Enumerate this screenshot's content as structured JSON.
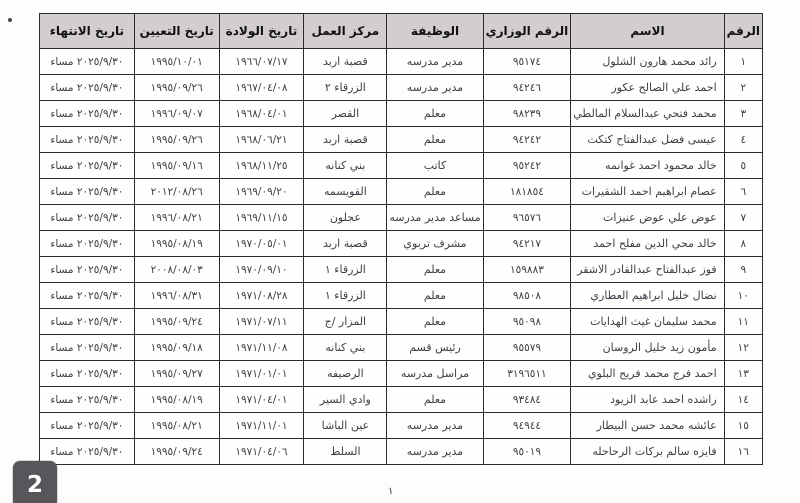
{
  "page": {
    "badge": "2",
    "footnote": "١"
  },
  "colors": {
    "header_bg": "#d2cece",
    "badge_bg": "#57575b",
    "border": "#2b2b2b",
    "ink": "#3e3e48"
  },
  "table": {
    "headers": [
      "الرقم",
      "الاسم",
      "الرقم الوزاري",
      "الوظيفة",
      "مركز العمل",
      "تاريخ الولادة",
      "تاريخ التعيين",
      "تاريخ الانتهاء"
    ],
    "rows": [
      [
        "١",
        "رائد محمد هارون الشلول",
        "٩٥١٧٤",
        "مدير مدرسه",
        "قصبة اربد",
        "١٩٦٦/٠٧/١٧",
        "١٩٩٥/١٠/٠١",
        "٢٠٢٥/٩/٣٠ مساء"
      ],
      [
        "٢",
        "احمد علي الصالح عكور",
        "٩٤٢٤٦",
        "مدير مدرسه",
        "الزرقاء ٢",
        "١٩٦٧/٠٤/٠٨",
        "١٩٩٥/٠٩/٢٦",
        "٢٠٢٥/٩/٣٠ مساء"
      ],
      [
        "٣",
        "محمد فتحي عبدالسلام المالطي",
        "٩٨٢٣٩",
        "معلم",
        "القصر",
        "١٩٦٨/٠٤/٠١",
        "١٩٩٦/٠٩/٠٧",
        "٢٠٢٥/٩/٣٠ مساء"
      ],
      [
        "٤",
        "عيسى فضل عبدالفتاح كتكت",
        "٩٤٢٤٢",
        "معلم",
        "قصبة اربد",
        "١٩٦٨/٠٦/٢١",
        "١٩٩٥/٠٩/٢٦",
        "٢٠٢٥/٩/٣٠ مساء"
      ],
      [
        "٥",
        "خالد محمود احمد غوانمه",
        "٩٥٢٤٢",
        "كاتب",
        "بني كنانه",
        "١٩٦٨/١١/٢٥",
        "١٩٩٥/٠٩/١٦",
        "٢٠٢٥/٩/٣٠ مساء"
      ],
      [
        "٦",
        "عصام ابراهيم احمد الشقيرات",
        "١٨١٨٥٤",
        "معلم",
        "القويسمه",
        "١٩٦٩/٠٩/٢٠",
        "٢٠١٢/٠٨/٢٦",
        "٢٠٢٥/٩/٣٠ مساء"
      ],
      [
        "٧",
        "عوض علي عوض عنيزات",
        "٩٦٥٧٦",
        "مساعد مدير مدرسه",
        "عجلون",
        "١٩٦٩/١١/١٥",
        "١٩٩٦/٠٨/٢١",
        "٢٠٢٥/٩/٣٠ مساء"
      ],
      [
        "٨",
        "خالد محي الدين مفلح احمد",
        "٩٤٢١٧",
        "مشرف تربوي",
        "قصبة اربد",
        "١٩٧٠/٠٥/٠١",
        "١٩٩٥/٠٨/١٩",
        "٢٠٢٥/٩/٣٠ مساء"
      ],
      [
        "٩",
        "فوز عبدالفتاح عبدالقادر الاشقر",
        "١٥٩٨٨٣",
        "معلم",
        "الزرقاء ١",
        "١٩٧٠/٠٩/١٠",
        "٢٠٠٨/٠٨/٠٣",
        "٢٠٢٥/٩/٣٠ مساء"
      ],
      [
        "١٠",
        "نضال خليل ابراهيم العطاري",
        "٩٨٥٠٨",
        "معلم",
        "الزرقاء ١",
        "١٩٧١/٠٨/٢٨",
        "١٩٩٦/٠٨/٣١",
        "٢٠٢٥/٩/٣٠ مساء"
      ],
      [
        "١١",
        "محمد سليمان غيث الهدايات",
        "٩٥٠٩٨",
        "معلم",
        "المزار /ج",
        "١٩٧١/٠٧/١١",
        "١٩٩٥/٠٩/٢٤",
        "٢٠٢٥/٩/٣٠ مساء"
      ],
      [
        "١٢",
        "مأمون زيد خليل الروسان",
        "٩٥٥٧٩",
        "رئيس قسم",
        "بني كنانه",
        "١٩٧١/١١/٠٨",
        "١٩٩٥/٠٩/١٨",
        "٢٠٢٥/٩/٣٠ مساء"
      ],
      [
        "١٣",
        "احمد فرج محمد فريح البلوي",
        "٣١٩٦٥١١",
        "مراسل مدرسه",
        "الرصيفه",
        "١٩٧١/٠١/٠١",
        "١٩٩٥/٠٩/٢٧",
        "٢٠٢٥/٩/٣٠ مساء"
      ],
      [
        "١٤",
        "راشده احمد عابد الزيود",
        "٩٣٤٨٤",
        "معلم",
        "وادي السير",
        "١٩٧١/٠٤/٠١",
        "١٩٩٥/٠٨/١٩",
        "٢٠٢٥/٩/٣٠ مساء"
      ],
      [
        "١٥",
        "عائشه محمد حسن البيطار",
        "٩٤٩٤٤",
        "مدير مدرسه",
        "عين الباشا",
        "١٩٧١/١١/٠١",
        "١٩٩٥/٠٨/٢١",
        "٢٠٢٥/٩/٣٠ مساء"
      ],
      [
        "١٦",
        "فايزه سالم بركات الرحاحله",
        "٩٥٠١٩",
        "مدير مدرسه",
        "السلط",
        "١٩٧١/٠٤/٠٦",
        "١٩٩٥/٠٩/٢٤",
        "٢٠٢٥/٩/٣٠ مساء"
      ]
    ]
  }
}
